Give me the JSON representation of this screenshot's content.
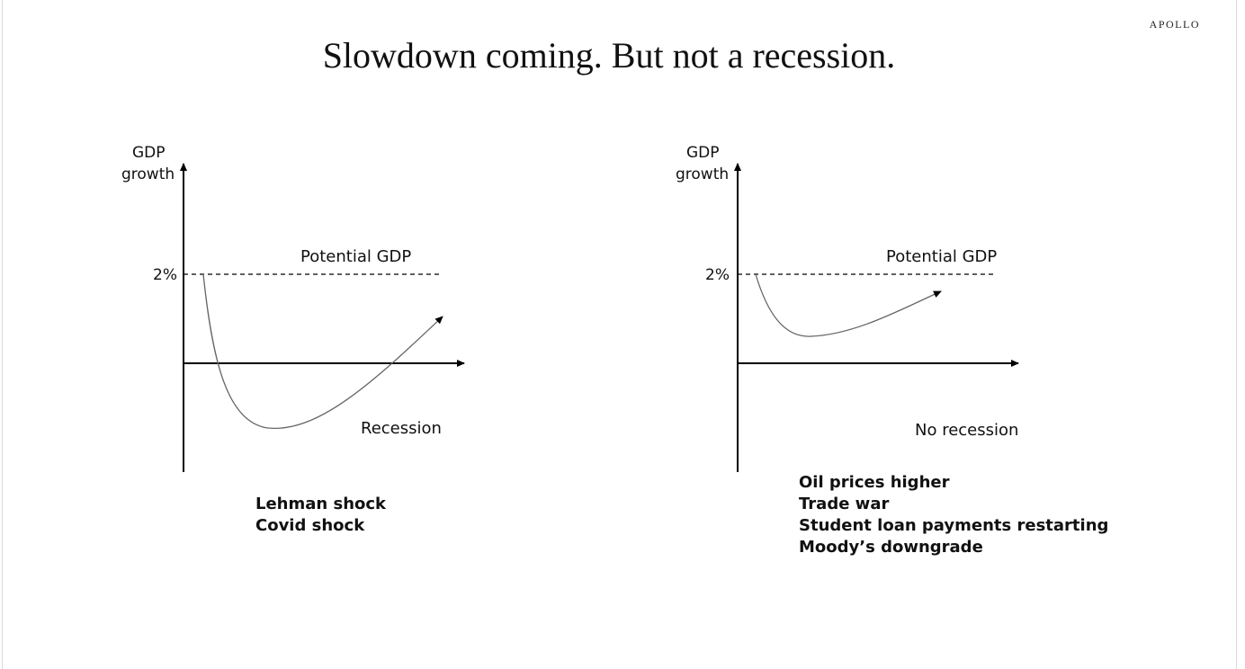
{
  "brand": "APOLLO",
  "title": "Slowdown coming. But not a recession.",
  "colors": {
    "axis": "#000000",
    "curve": "#666666",
    "text": "#111111"
  },
  "panels": [
    {
      "y_axis_label_line1": "GDP",
      "y_axis_label_line2": "growth",
      "tick_label": "2%",
      "reference_line_label": "Potential GDP",
      "scenario_label": "Recession",
      "notes": [
        "Lehman shock",
        "Covid shock"
      ]
    },
    {
      "y_axis_label_line1": "GDP",
      "y_axis_label_line2": "growth",
      "tick_label": "2%",
      "reference_line_label": "Potential GDP",
      "scenario_label": "No recession",
      "notes": [
        "Oil prices higher",
        "Trade war",
        "Student loan payments restarting",
        "Moody’s downgrade"
      ]
    }
  ]
}
